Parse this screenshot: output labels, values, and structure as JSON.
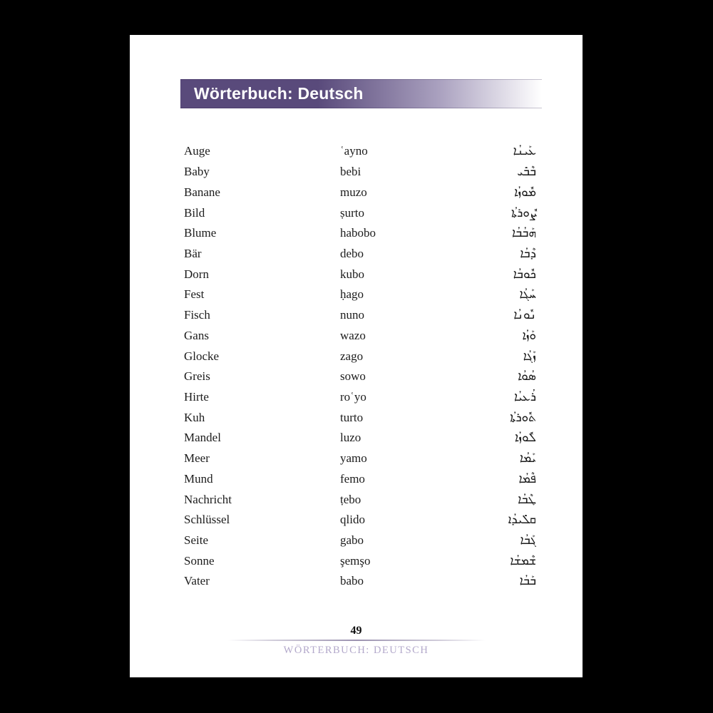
{
  "header": {
    "title": "Wörterbuch: Deutsch"
  },
  "colors": {
    "header_bar_purple": "#594a7b",
    "running_footer_purple": "#b3a9cb",
    "body_text": "#1c1c1c",
    "page_background": "#ffffff",
    "surround_background": "#000000"
  },
  "entries": [
    {
      "german": "Auge",
      "latin": "ʿayno",
      "syriac": "ܥܰܝܢܳܐ"
    },
    {
      "german": "Baby",
      "latin": "bebi",
      "syriac": "ܒܶܒܺܝ"
    },
    {
      "german": "Banane",
      "latin": "muzo",
      "syriac": "ܡܽܘܙܳܐ"
    },
    {
      "german": "Bild",
      "latin": "ṣurto",
      "syriac": "ܨܽܘܪܬܳܐ"
    },
    {
      "german": "Blume",
      "latin": "habobo",
      "syriac": "ܗܰܒܳܒܳܐ"
    },
    {
      "german": "Bär",
      "latin": "debo",
      "syriac": "ܕܶܒܳܐ"
    },
    {
      "german": "Dorn",
      "latin": "kubo",
      "syriac": "ܟܽܘܒܳܐ"
    },
    {
      "german": "Fest",
      "latin": "ḥago",
      "syriac": "ܚܰܓܳܐ"
    },
    {
      "german": "Fisch",
      "latin": "nuno",
      "syriac": "ܢܽܘܢܳܐ"
    },
    {
      "german": "Gans",
      "latin": "wazo",
      "syriac": "ܘܰܙܳܐ"
    },
    {
      "german": "Glocke",
      "latin": "zago",
      "syriac": "ܙܰܓܳܐ"
    },
    {
      "german": "Greis",
      "latin": "sowo",
      "syriac": "ܣܳܘܳܐ"
    },
    {
      "german": "Hirte",
      "latin": "roʿyo",
      "syriac": "ܪܳܥܝܳܐ"
    },
    {
      "german": "Kuh",
      "latin": "turto",
      "syriac": "ܬܽܘܪܬܳܐ"
    },
    {
      "german": "Mandel",
      "latin": "luzo",
      "syriac": "ܠܽܘܙܳܐ"
    },
    {
      "german": "Meer",
      "latin": "yamo",
      "syriac": "ܝܰܡܳܐ"
    },
    {
      "german": "Mund",
      "latin": "femo",
      "syriac": "ܦܶܡܳܐ"
    },
    {
      "german": "Nachricht",
      "latin": "ṭebo",
      "syriac": "ܛܶܒܳܐ"
    },
    {
      "german": "Schlüssel",
      "latin": "qlido",
      "syriac": "ܩܠܺܝܕܳܐ"
    },
    {
      "german": "Seite",
      "latin": "gabo",
      "syriac": "ܓܰܒܳܐ"
    },
    {
      "german": "Sonne",
      "latin": "şemşo",
      "syriac": "ܫܶܡܫܳܐ"
    },
    {
      "german": "Vater",
      "latin": "babo",
      "syriac": "ܒܰܒܳܐ"
    }
  ],
  "footer": {
    "page_number": "49",
    "running_title": "WÖRTERBUCH: DEUTSCH"
  }
}
